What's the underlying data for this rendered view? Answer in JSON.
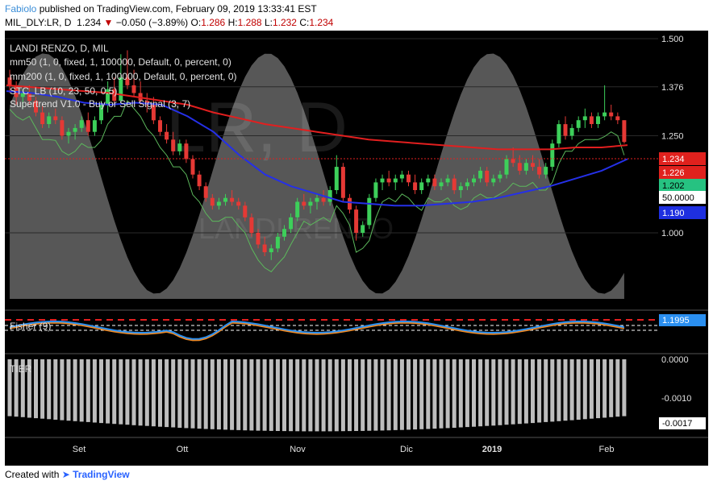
{
  "header": {
    "author": "Fabiolo",
    "published": "published on TradingView.com, February 09, 2019 13:33:41 EST",
    "symbol": "MIL_DLY:LR, D",
    "last": "1.234",
    "change": "−0.050 (−3.89%)",
    "ohlc": {
      "o_label": "O:",
      "o": "1.286",
      "h_label": "H:",
      "h": "1.288",
      "l_label": "L:",
      "l": "1.232",
      "c_label": "C:",
      "c": "1.234"
    }
  },
  "legend": {
    "title": "LANDI RENZO, D, MIL",
    "lines": [
      "mm50 (1, 0, fixed, 1, 100000, Default, 0, percent, 0)",
      "mm200 (1, 0, fixed, 1, 100000, Default, 0, percent, 0)",
      "STC_LB (10, 23, 50, 0.5)",
      "Supertrend V1.0 - Buy or Sell Signal (3, 7)"
    ]
  },
  "watermark": {
    "big": "LR, D",
    "small": "LANDI RENZO"
  },
  "fisher": {
    "label": "Fisher (9)",
    "value": "1.1995"
  },
  "tier": {
    "label": "TIER",
    "ticks": [
      "0.0000",
      "-0.0010"
    ],
    "value": "-0.0017"
  },
  "badges": [
    {
      "text": "1.234",
      "bg": "#e0211d",
      "fg": "#ffffff"
    },
    {
      "text": "1.226",
      "bg": "#e0211d",
      "fg": "#ffffff"
    },
    {
      "text": "1.202",
      "bg": "#26c281",
      "fg": "#000000"
    },
    {
      "text": "50.0000",
      "bg": "#ffffff",
      "fg": "#000000"
    },
    {
      "text": "1.190",
      "bg": "#1e2fe0",
      "fg": "#ffffff"
    }
  ],
  "footer": {
    "created": "Created with",
    "brand": "TradingView"
  },
  "colors": {
    "background": "#000000",
    "up_candle": "#3dcf5a",
    "down_candle": "#e53935",
    "mm50": "#2530e8",
    "mm200": "#e21f1f",
    "stc_fill": "#666666",
    "supertrend": "#5cb85c",
    "fisher_main": "#2a8ff0",
    "fisher_signal": "#f08a24",
    "tier_bars": "#bdbdbd"
  },
  "chart_data": {
    "type": "candlestick",
    "title": "LANDI RENZO, D, MIL",
    "ylim": [
      0.83,
      1.5
    ],
    "y_ticks": [
      "1.500",
      "1.376",
      "1.250",
      "1.000"
    ],
    "x_ticks": [
      "Set",
      "Ott",
      "Nov",
      "Dic",
      "2019",
      "Feb"
    ],
    "last_close": 1.234,
    "ohlc_last": {
      "open": 1.286,
      "high": 1.288,
      "low": 1.232,
      "close": 1.234
    },
    "series": [
      {
        "name": "mm50",
        "last": 1.19,
        "values": [
          1.365,
          1.36,
          1.35,
          1.335,
          1.33,
          1.335,
          1.33,
          1.3,
          1.26,
          1.2,
          1.15,
          1.12,
          1.1,
          1.08,
          1.075,
          1.07,
          1.07,
          1.075,
          1.08,
          1.09,
          1.105,
          1.12,
          1.14,
          1.16,
          1.19
        ]
      },
      {
        "name": "mm200",
        "last": 1.226,
        "values": [
          1.38,
          1.375,
          1.37,
          1.365,
          1.36,
          1.35,
          1.34,
          1.33,
          1.31,
          1.295,
          1.28,
          1.27,
          1.26,
          1.25,
          1.24,
          1.235,
          1.23,
          1.225,
          1.22,
          1.215,
          1.215,
          1.215,
          1.22,
          1.22,
          1.226
        ]
      },
      {
        "name": "Supertrend V1.0 - Buy or Sell Signal",
        "last": 1.202
      },
      {
        "name": "STC_LB",
        "last": 50.0
      },
      {
        "name": "Fisher",
        "last": 1.1995
      },
      {
        "name": "TIER",
        "last": -0.0017
      }
    ],
    "candles": [
      [
        1.4,
        1.42,
        1.36,
        1.38
      ],
      [
        1.38,
        1.39,
        1.33,
        1.35
      ],
      [
        1.35,
        1.37,
        1.32,
        1.36
      ],
      [
        1.36,
        1.38,
        1.33,
        1.34
      ],
      [
        1.34,
        1.35,
        1.3,
        1.31
      ],
      [
        1.31,
        1.33,
        1.27,
        1.28
      ],
      [
        1.28,
        1.31,
        1.27,
        1.3
      ],
      [
        1.3,
        1.32,
        1.28,
        1.29
      ],
      [
        1.29,
        1.3,
        1.24,
        1.25
      ],
      [
        1.25,
        1.27,
        1.23,
        1.26
      ],
      [
        1.26,
        1.28,
        1.24,
        1.27
      ],
      [
        1.27,
        1.3,
        1.26,
        1.29
      ],
      [
        1.29,
        1.31,
        1.25,
        1.26
      ],
      [
        1.26,
        1.3,
        1.25,
        1.29
      ],
      [
        1.29,
        1.34,
        1.28,
        1.33
      ],
      [
        1.33,
        1.39,
        1.31,
        1.37
      ],
      [
        1.37,
        1.4,
        1.33,
        1.34
      ],
      [
        1.34,
        1.46,
        1.33,
        1.4
      ],
      [
        1.4,
        1.47,
        1.37,
        1.38
      ],
      [
        1.38,
        1.42,
        1.35,
        1.36
      ],
      [
        1.36,
        1.39,
        1.33,
        1.34
      ],
      [
        1.34,
        1.36,
        1.31,
        1.33
      ],
      [
        1.33,
        1.35,
        1.28,
        1.29
      ],
      [
        1.29,
        1.3,
        1.25,
        1.26
      ],
      [
        1.26,
        1.28,
        1.23,
        1.24
      ],
      [
        1.24,
        1.26,
        1.2,
        1.21
      ],
      [
        1.21,
        1.24,
        1.2,
        1.23
      ],
      [
        1.23,
        1.24,
        1.18,
        1.19
      ],
      [
        1.19,
        1.2,
        1.14,
        1.15
      ],
      [
        1.15,
        1.16,
        1.11,
        1.12
      ],
      [
        1.12,
        1.13,
        1.08,
        1.09
      ],
      [
        1.09,
        1.1,
        1.06,
        1.07
      ],
      [
        1.07,
        1.09,
        1.06,
        1.08
      ],
      [
        1.08,
        1.1,
        1.07,
        1.09
      ],
      [
        1.09,
        1.11,
        1.07,
        1.08
      ],
      [
        1.08,
        1.09,
        1.06,
        1.07
      ],
      [
        1.07,
        1.08,
        1.03,
        1.04
      ],
      [
        1.04,
        1.05,
        0.99,
        1.0
      ],
      [
        1.0,
        1.01,
        0.96,
        0.97
      ],
      [
        0.97,
        0.99,
        0.94,
        0.95
      ],
      [
        0.95,
        0.97,
        0.93,
        0.96
      ],
      [
        0.96,
        1.0,
        0.95,
        0.99
      ],
      [
        0.99,
        1.02,
        0.98,
        1.01
      ],
      [
        1.01,
        1.05,
        1.0,
        1.04
      ],
      [
        1.04,
        1.09,
        1.03,
        1.08
      ],
      [
        1.08,
        1.1,
        1.06,
        1.07
      ],
      [
        1.07,
        1.09,
        1.05,
        1.08
      ],
      [
        1.08,
        1.1,
        1.06,
        1.09
      ],
      [
        1.09,
        1.11,
        1.07,
        1.08
      ],
      [
        1.08,
        1.12,
        1.07,
        1.11
      ],
      [
        1.11,
        1.2,
        1.1,
        1.17
      ],
      [
        1.17,
        1.18,
        1.08,
        1.09
      ],
      [
        1.09,
        1.1,
        1.05,
        1.06
      ],
      [
        1.06,
        1.07,
        0.98,
        1.0
      ],
      [
        1.0,
        1.03,
        0.99,
        1.02
      ],
      [
        1.02,
        1.1,
        1.01,
        1.09
      ],
      [
        1.09,
        1.14,
        1.08,
        1.13
      ],
      [
        1.13,
        1.15,
        1.11,
        1.14
      ],
      [
        1.14,
        1.16,
        1.12,
        1.13
      ],
      [
        1.13,
        1.15,
        1.11,
        1.14
      ],
      [
        1.14,
        1.16,
        1.13,
        1.15
      ],
      [
        1.15,
        1.16,
        1.12,
        1.13
      ],
      [
        1.13,
        1.15,
        1.1,
        1.11
      ],
      [
        1.11,
        1.14,
        1.1,
        1.13
      ],
      [
        1.13,
        1.15,
        1.12,
        1.14
      ],
      [
        1.14,
        1.15,
        1.11,
        1.12
      ],
      [
        1.12,
        1.14,
        1.11,
        1.13
      ],
      [
        1.13,
        1.15,
        1.12,
        1.14
      ],
      [
        1.14,
        1.15,
        1.1,
        1.11
      ],
      [
        1.11,
        1.13,
        1.09,
        1.12
      ],
      [
        1.12,
        1.14,
        1.11,
        1.13
      ],
      [
        1.13,
        1.15,
        1.12,
        1.14
      ],
      [
        1.14,
        1.17,
        1.13,
        1.16
      ],
      [
        1.16,
        1.17,
        1.12,
        1.13
      ],
      [
        1.13,
        1.15,
        1.12,
        1.14
      ],
      [
        1.14,
        1.16,
        1.13,
        1.15
      ],
      [
        1.15,
        1.2,
        1.14,
        1.19
      ],
      [
        1.19,
        1.22,
        1.17,
        1.18
      ],
      [
        1.18,
        1.2,
        1.15,
        1.16
      ],
      [
        1.16,
        1.19,
        1.15,
        1.18
      ],
      [
        1.18,
        1.2,
        1.16,
        1.17
      ],
      [
        1.17,
        1.19,
        1.14,
        1.15
      ],
      [
        1.15,
        1.18,
        1.14,
        1.17
      ],
      [
        1.17,
        1.24,
        1.16,
        1.23
      ],
      [
        1.23,
        1.29,
        1.22,
        1.28
      ],
      [
        1.28,
        1.3,
        1.24,
        1.25
      ],
      [
        1.25,
        1.28,
        1.24,
        1.27
      ],
      [
        1.27,
        1.3,
        1.26,
        1.29
      ],
      [
        1.29,
        1.32,
        1.27,
        1.3
      ],
      [
        1.3,
        1.31,
        1.27,
        1.28
      ],
      [
        1.28,
        1.31,
        1.27,
        1.3
      ],
      [
        1.3,
        1.38,
        1.29,
        1.31
      ],
      [
        1.31,
        1.33,
        1.29,
        1.3
      ],
      [
        1.3,
        1.31,
        1.28,
        1.29
      ],
      [
        1.29,
        1.29,
        1.23,
        1.234
      ]
    ]
  }
}
